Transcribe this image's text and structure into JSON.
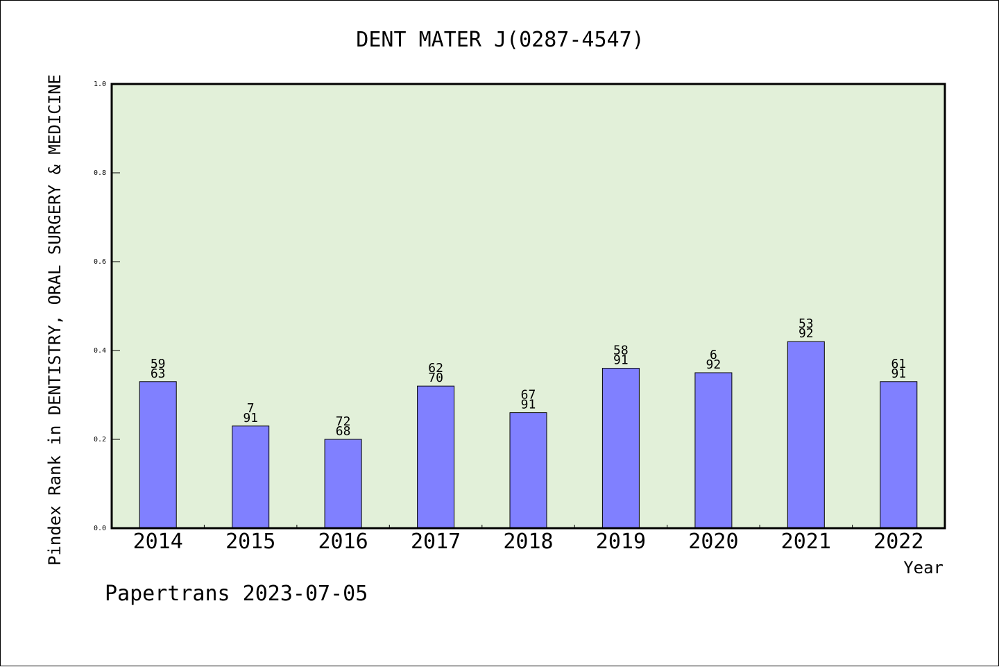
{
  "chart_data": {
    "type": "bar",
    "title": "DENT MATER J(0287-4547)",
    "xlabel": "Year",
    "ylabel": "Pindex Rank in DENTISTRY, ORAL SURGERY & MEDICINE",
    "categories": [
      "2014",
      "2015",
      "2016",
      "2017",
      "2018",
      "2019",
      "2020",
      "2021",
      "2022"
    ],
    "values": [
      0.33,
      0.23,
      0.2,
      0.32,
      0.26,
      0.36,
      0.35,
      0.42,
      0.33
    ],
    "bar_labels_top": [
      "59",
      "7",
      "72",
      "62",
      "67",
      "58",
      "6",
      "53",
      "61"
    ],
    "bar_labels_bottom": [
      "63",
      "91",
      "68",
      "70",
      "91",
      "91",
      "92",
      "92",
      "91"
    ],
    "ylim": [
      0.0,
      1.0
    ],
    "yticks": [
      "0.0",
      "0.2",
      "0.4",
      "0.6",
      "0.8",
      "1.0"
    ],
    "grid": false,
    "colors": {
      "bar": "#8080ff",
      "plot_background": "#e2f0d9",
      "bar_edge": "#000000"
    }
  },
  "footer": "Papertrans 2023-07-05"
}
